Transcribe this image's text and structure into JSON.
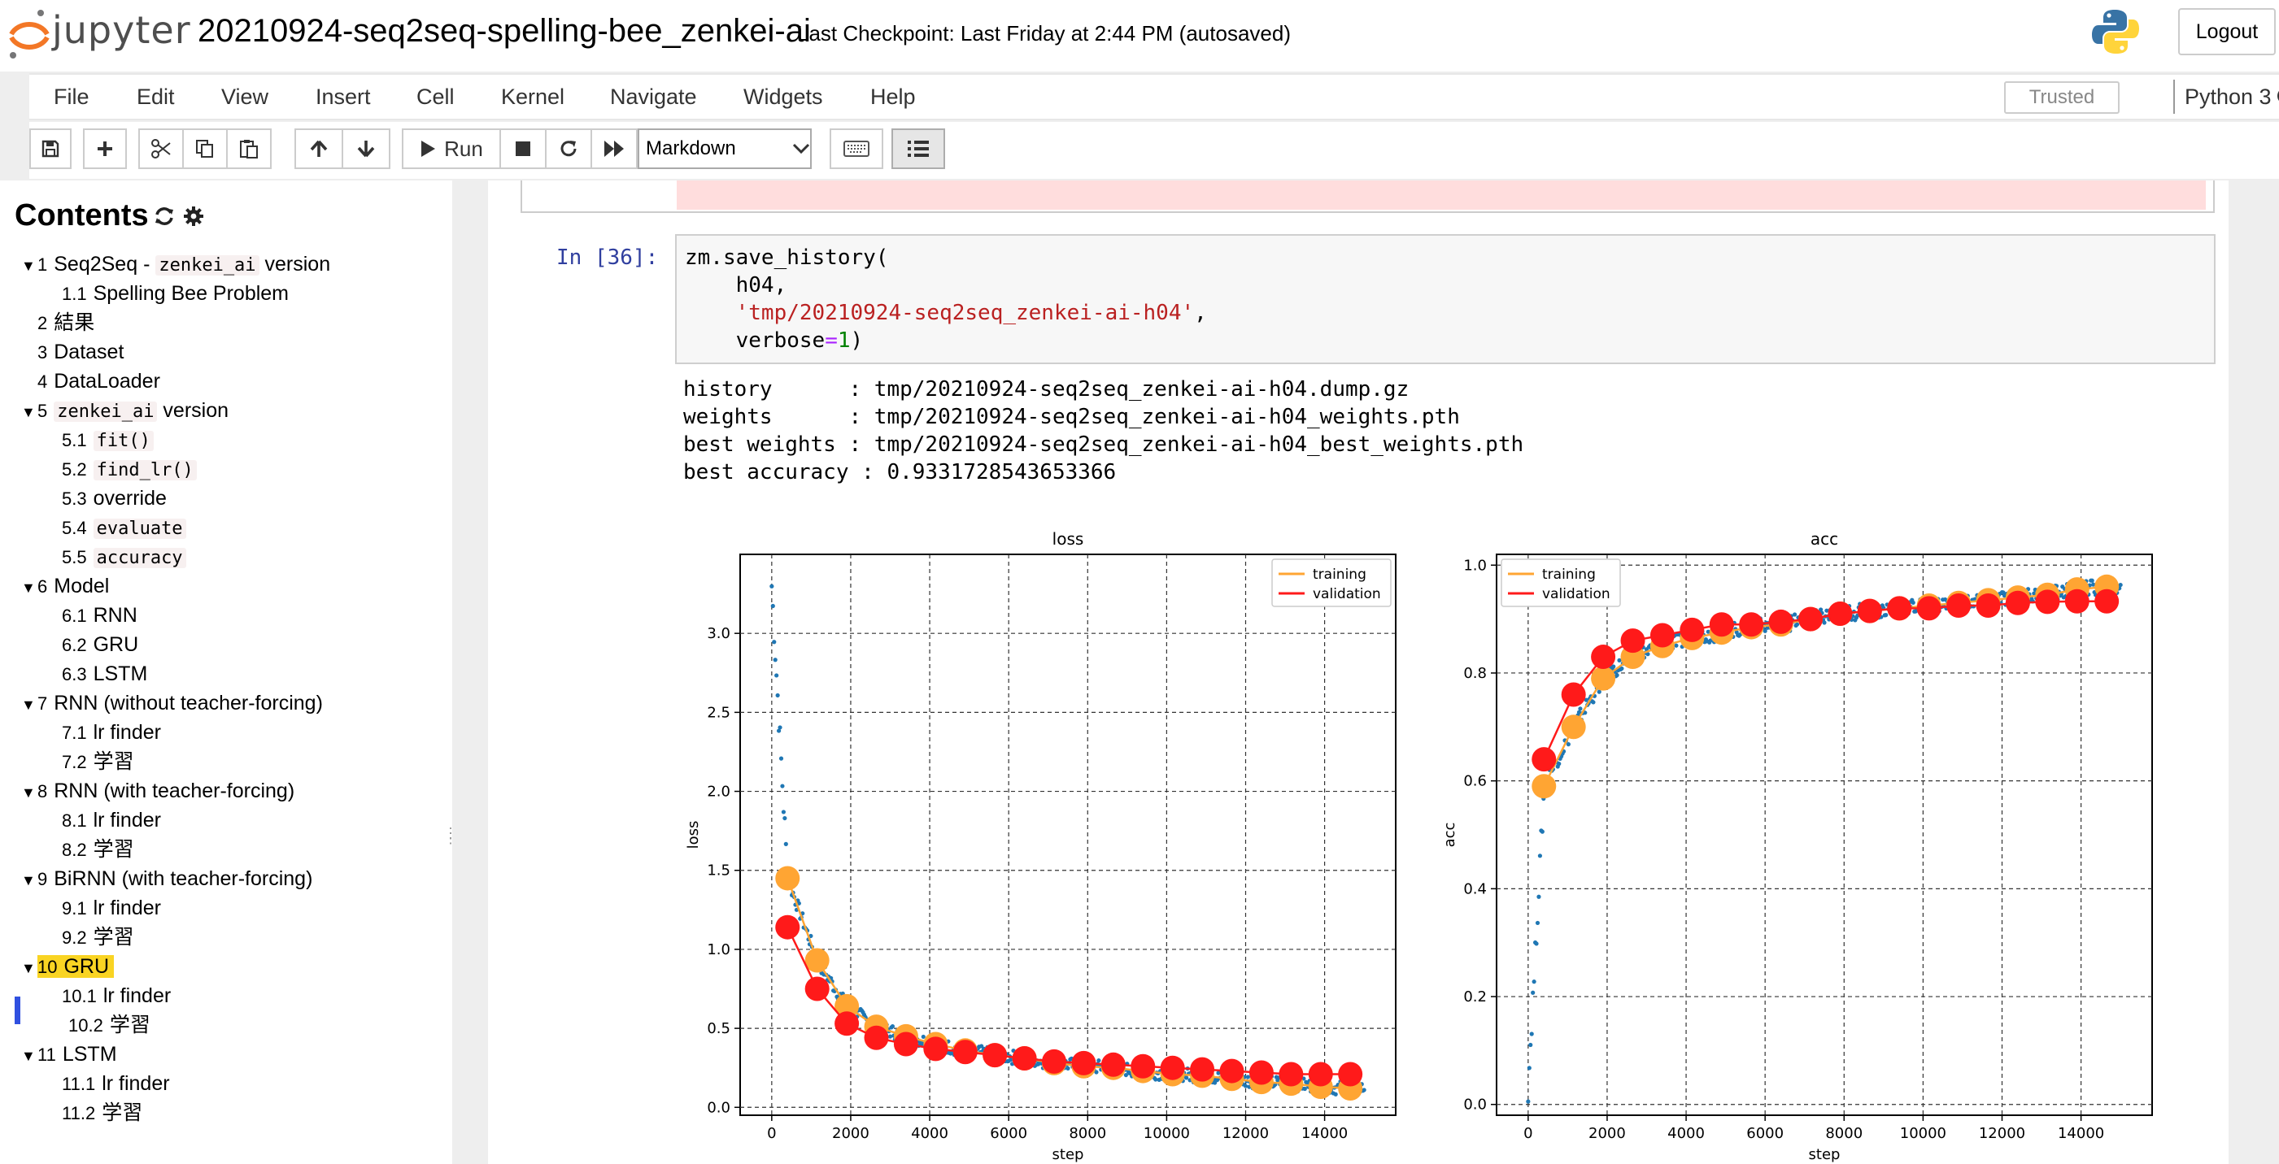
{
  "header": {
    "logo_text": "jupyter",
    "notebook_name": "20210924-seq2seq-spelling-bee_zenkei-ai",
    "checkpoint": "Last Checkpoint: Last Friday at 2:44 PM  (autosaved)",
    "logout_label": "Logout"
  },
  "menu": {
    "items": [
      "File",
      "Edit",
      "View",
      "Insert",
      "Cell",
      "Kernel",
      "Navigate",
      "Widgets",
      "Help"
    ],
    "trusted_label": "Trusted",
    "kernel_name": "Python 3"
  },
  "toolbar": {
    "run_label": "Run",
    "cell_type": "Markdown",
    "icons": [
      "save-icon",
      "plus-icon",
      "cut-icon",
      "copy-icon",
      "paste-icon",
      "arrow-up-icon",
      "arrow-down-icon",
      "play-icon",
      "stop-icon",
      "restart-icon",
      "fast-forward-icon",
      "keyboard-icon",
      "list-icon"
    ]
  },
  "toc": {
    "title": "Contents",
    "items": [
      {
        "num": "1",
        "pre": "Seq2Seq - ",
        "code": "zenkei_ai",
        "post": " version",
        "level": 1,
        "tri": true
      },
      {
        "num": "1.1",
        "pre": "Spelling Bee Problem",
        "level": 2
      },
      {
        "num": "2",
        "pre": "結果",
        "level": 1
      },
      {
        "num": "3",
        "pre": "Dataset",
        "level": 1
      },
      {
        "num": "4",
        "pre": "DataLoader",
        "level": 1
      },
      {
        "num": "5",
        "pre": "",
        "code": "zenkei_ai",
        "post": " version",
        "level": 1,
        "tri": true
      },
      {
        "num": "5.1",
        "pre": "",
        "code": "fit()",
        "level": 2
      },
      {
        "num": "5.2",
        "pre": "",
        "code": "find_lr()",
        "level": 2
      },
      {
        "num": "5.3",
        "pre": "override",
        "level": 2
      },
      {
        "num": "5.4",
        "pre": "",
        "code": "evaluate",
        "level": 2
      },
      {
        "num": "5.5",
        "pre": "",
        "code": "accuracy",
        "level": 2
      },
      {
        "num": "6",
        "pre": "Model",
        "level": 1,
        "tri": true
      },
      {
        "num": "6.1",
        "pre": "RNN",
        "level": 2
      },
      {
        "num": "6.2",
        "pre": "GRU",
        "level": 2
      },
      {
        "num": "6.3",
        "pre": "LSTM",
        "level": 2
      },
      {
        "num": "7",
        "pre": "RNN (without teacher-forcing)",
        "level": 1,
        "tri": true
      },
      {
        "num": "7.1",
        "pre": "lr finder",
        "level": 2
      },
      {
        "num": "7.2",
        "pre": "学習",
        "level": 2
      },
      {
        "num": "8",
        "pre": "RNN (with teacher-forcing)",
        "level": 1,
        "tri": true
      },
      {
        "num": "8.1",
        "pre": "lr finder",
        "level": 2
      },
      {
        "num": "8.2",
        "pre": "学習",
        "level": 2
      },
      {
        "num": "9",
        "pre": "BiRNN (with teacher-forcing)",
        "level": 1,
        "tri": true
      },
      {
        "num": "9.1",
        "pre": "lr finder",
        "level": 2
      },
      {
        "num": "9.2",
        "pre": "学習",
        "level": 2
      },
      {
        "num": "10",
        "pre": "GRU",
        "level": 1,
        "tri": true,
        "active": true
      },
      {
        "num": "10.1",
        "pre": "lr finder",
        "level": 2
      },
      {
        "num": "10.2",
        "pre": "学習",
        "level": 2,
        "current": true
      },
      {
        "num": "11",
        "pre": "LSTM",
        "level": 1,
        "tri": true
      },
      {
        "num": "11.1",
        "pre": "lr finder",
        "level": 2
      },
      {
        "num": "11.2",
        "pre": "学習",
        "level": 2
      }
    ]
  },
  "cell": {
    "prompt": "In [36]:",
    "code": {
      "line1": "zm.save_history(",
      "line2": "    h04,",
      "line3_indent": "    ",
      "line3_str": "'tmp/20210924-seq2seq_zenkei-ai-h04'",
      "line3_tail": ",",
      "line4_pre": "    verbose",
      "line4_op": "=",
      "line4_num": "1",
      "line4_tail": ")"
    },
    "output": [
      "history      : tmp/20210924-seq2seq_zenkei-ai-h04.dump.gz",
      "weights      : tmp/20210924-seq2seq_zenkei-ai-h04_weights.pth",
      "best weights : tmp/20210924-seq2seq_zenkei-ai-h04_best_weights.pth",
      "best accuracy : 0.9331728543653366"
    ]
  },
  "chart_data": [
    {
      "type": "scatter",
      "title": "loss",
      "xlabel": "step",
      "ylabel": "loss",
      "xlim": [
        -800,
        15800
      ],
      "ylim": [
        -0.05,
        3.5
      ],
      "xticks": [
        0,
        2000,
        4000,
        6000,
        8000,
        10000,
        12000,
        14000
      ],
      "yticks": [
        0.0,
        0.5,
        1.0,
        1.5,
        2.0,
        2.5,
        3.0
      ],
      "ytick_labels": [
        "0.0",
        "0.5",
        "1.0",
        "1.5",
        "2.0",
        "2.5",
        "3.0"
      ],
      "grid": true,
      "legend": "top-right",
      "legend_entries": [
        "training",
        "validation"
      ],
      "series": [
        {
          "name": "training",
          "color": "#ffa533",
          "x": [
            400,
            1150,
            1900,
            2650,
            3400,
            4150,
            4900,
            5650,
            6400,
            7150,
            7900,
            8650,
            9400,
            10150,
            10900,
            11650,
            12400,
            13150,
            13900,
            14650
          ],
          "y": [
            1.45,
            0.93,
            0.64,
            0.51,
            0.45,
            0.4,
            0.36,
            0.33,
            0.31,
            0.28,
            0.26,
            0.25,
            0.23,
            0.21,
            0.2,
            0.18,
            0.16,
            0.15,
            0.13,
            0.12
          ]
        },
        {
          "name": "validation",
          "color": "#ff1a1a",
          "x": [
            400,
            1150,
            1900,
            2650,
            3400,
            4150,
            4900,
            5650,
            6400,
            7150,
            7900,
            8650,
            9400,
            10150,
            10900,
            11650,
            12400,
            13150,
            13900,
            14650
          ],
          "y": [
            1.14,
            0.75,
            0.53,
            0.44,
            0.4,
            0.37,
            0.35,
            0.33,
            0.31,
            0.29,
            0.28,
            0.27,
            0.26,
            0.25,
            0.24,
            0.23,
            0.22,
            0.21,
            0.21,
            0.21
          ]
        }
      ]
    },
    {
      "type": "scatter",
      "title": "acc",
      "xlabel": "step",
      "ylabel": "acc",
      "xlim": [
        -800,
        15800
      ],
      "ylim": [
        -0.02,
        1.02
      ],
      "xticks": [
        0,
        2000,
        4000,
        6000,
        8000,
        10000,
        12000,
        14000
      ],
      "yticks": [
        0.0,
        0.2,
        0.4,
        0.6,
        0.8,
        1.0
      ],
      "ytick_labels": [
        "0.0",
        "0.2",
        "0.4",
        "0.6",
        "0.8",
        "1.0"
      ],
      "grid": true,
      "legend": "top-left",
      "legend_entries": [
        "training",
        "validation"
      ],
      "series": [
        {
          "name": "training",
          "color": "#ffa533",
          "x": [
            400,
            1150,
            1900,
            2650,
            3400,
            4150,
            4900,
            5650,
            6400,
            7150,
            7900,
            8650,
            9400,
            10150,
            10900,
            11650,
            12400,
            13150,
            13900,
            14650
          ],
          "y": [
            0.59,
            0.7,
            0.79,
            0.83,
            0.85,
            0.865,
            0.875,
            0.885,
            0.89,
            0.9,
            0.91,
            0.915,
            0.92,
            0.925,
            0.93,
            0.935,
            0.94,
            0.945,
            0.955,
            0.96
          ]
        },
        {
          "name": "validation",
          "color": "#ff1a1a",
          "x": [
            400,
            1150,
            1900,
            2650,
            3400,
            4150,
            4900,
            5650,
            6400,
            7150,
            7900,
            8650,
            9400,
            10150,
            10900,
            11650,
            12400,
            13150,
            13900,
            14650
          ],
          "y": [
            0.64,
            0.76,
            0.83,
            0.86,
            0.87,
            0.88,
            0.89,
            0.89,
            0.895,
            0.9,
            0.91,
            0.915,
            0.92,
            0.92,
            0.925,
            0.925,
            0.93,
            0.932,
            0.933,
            0.933
          ]
        }
      ]
    }
  ]
}
